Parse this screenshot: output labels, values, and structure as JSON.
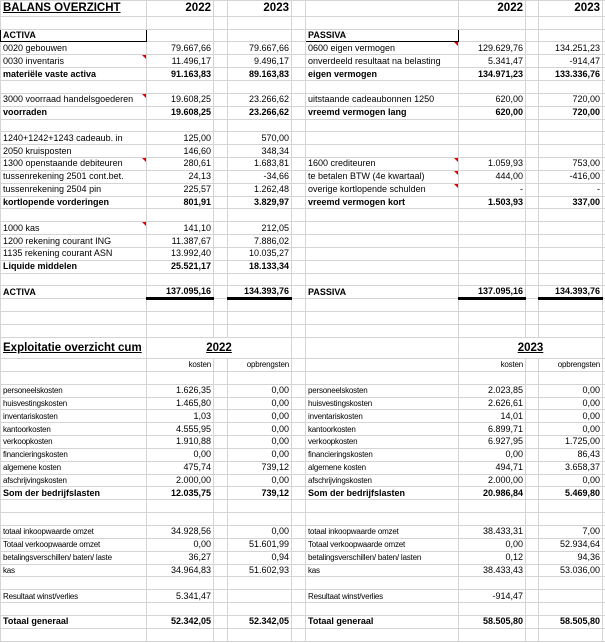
{
  "balance": {
    "title": "BALANS OVERZICHT",
    "years": [
      "2022",
      "2023"
    ],
    "activa_header": "ACTIVA",
    "passiva_header": "PASSIVA",
    "rows": [
      {
        "activa": {
          "label": "0020 gebouwen",
          "v2022": "79.667,66",
          "v2023": "79.667,66"
        },
        "passiva": {
          "label": "0600 eigen vermogen",
          "v2022": "129.629,76",
          "v2023": "134.251,23",
          "comment": true
        }
      },
      {
        "activa": {
          "label": "0030 inventaris",
          "v2022": "11.496,17",
          "v2023": "9.496,17",
          "comment": true
        },
        "passiva": {
          "label": "onverdeeld resultaat na belasting",
          "v2022": "5.341,47",
          "v2023": "-914,47"
        }
      },
      {
        "activa": {
          "label": "materiële vaste activa",
          "v2022": "91.163,83",
          "v2023": "89.163,83",
          "bold": true,
          "line": true
        },
        "passiva": {
          "label": "eigen vermogen",
          "v2022": "134.971,23",
          "v2023": "133.336,76",
          "bold": true,
          "line": true
        }
      },
      {},
      {
        "activa": {
          "label": "3000 voorraad handelsgoederen",
          "v2022": "19.608,25",
          "v2023": "23.266,62",
          "comment": true
        },
        "passiva": {
          "label": "uitstaande cadeaubonnen 1250",
          "v2022": "620,00",
          "v2023": "720,00"
        }
      },
      {
        "activa": {
          "label": "voorraden",
          "v2022": "19.608,25",
          "v2023": "23.266,62",
          "bold": true
        },
        "passiva": {
          "label": "vreemd vermogen lang",
          "v2022": "620,00",
          "v2023": "720,00",
          "bold": true,
          "line": true
        }
      },
      {},
      {
        "activa": {
          "label": "1240+1242+1243 cadeaub. in",
          "v2022": "125,00",
          "v2023": "570,00"
        }
      },
      {
        "activa": {
          "label": "2050 kruisposten",
          "v2022": "146,60",
          "v2023": "348,34"
        }
      },
      {
        "activa": {
          "label": "1300 openstaande debiteuren",
          "v2022": "280,61",
          "v2023": "1.683,81",
          "comment": true
        },
        "passiva": {
          "label": "1600 crediteuren",
          "v2022": "1.059,93",
          "v2023": "753,00",
          "comment": true
        }
      },
      {
        "activa": {
          "label": "tussenrekening 2501 cont.bet.",
          "v2022": "24,13",
          "v2023": "-34,66"
        },
        "passiva": {
          "label": "te betalen BTW (4e kwartaal)",
          "v2022": "444,00",
          "v2023": "-416,00",
          "comment": true
        }
      },
      {
        "activa": {
          "label": "tussenrekening 2504 pin",
          "v2022": "225,57",
          "v2023": "1.262,48"
        },
        "passiva": {
          "label": "overige kortlopende schulden",
          "v2022": "-",
          "v2023": "-",
          "comment": true
        }
      },
      {
        "activa": {
          "label": "kortlopende vorderingen",
          "v2022": "801,91",
          "v2023": "3.829,97",
          "bold": true,
          "line": true
        },
        "passiva": {
          "label": "vreemd vermogen kort",
          "v2022": "1.503,93",
          "v2023": "337,00",
          "bold": true,
          "line": true
        }
      },
      {},
      {
        "activa": {
          "label": "1000 kas",
          "v2022": "141,10",
          "v2023": "212,05",
          "comment": true
        }
      },
      {
        "activa": {
          "label": "1200 rekening courant ING",
          "v2022": "11.387,67",
          "v2023": "7.886,02"
        }
      },
      {
        "activa": {
          "label": "1135 rekening courant ASN",
          "v2022": "13.992,40",
          "v2023": "10.035,27"
        }
      },
      {
        "activa": {
          "label": "Liquide middelen",
          "v2022": "25.521,17",
          "v2023": "18.133,34",
          "bold": true,
          "line": true
        }
      },
      {},
      {
        "activa": {
          "label": "ACTIVA",
          "v2022": "137.095,16",
          "v2023": "134.393,76",
          "bold": true,
          "line": true,
          "total": true
        },
        "passiva": {
          "label": "PASSIVA",
          "v2022": "137.095,16",
          "v2023": "134.393,76",
          "bold": true,
          "line": true,
          "total": true
        }
      }
    ]
  },
  "exploitatie": {
    "title": "Exploitatie overzicht cum",
    "sides": [
      {
        "year": "2022",
        "kosten_label": "kosten",
        "opbrengsten_label": "opbrengsten"
      },
      {
        "year": "2023",
        "kosten_label": "kosten",
        "opbrengsten_label": "opbrengsten"
      }
    ],
    "rows": [
      {
        "left": {
          "label": "personeelskosten",
          "kosten": "1.626,35",
          "opbrengsten": "0,00"
        },
        "right": {
          "label": "personeelskosten",
          "kosten": "2.023,85",
          "opbrengsten": "0,00"
        }
      },
      {
        "left": {
          "label": "huisvestingskosten",
          "kosten": "1.465,80",
          "opbrengsten": "0,00"
        },
        "right": {
          "label": "huisvestingskosten",
          "kosten": "2.626,61",
          "opbrengsten": "0,00"
        }
      },
      {
        "left": {
          "label": "inventariskosten",
          "kosten": "1,03",
          "opbrengsten": "0,00"
        },
        "right": {
          "label": "inventariskosten",
          "kosten": "14,01",
          "opbrengsten": "0,00"
        }
      },
      {
        "left": {
          "label": "kantoorkosten",
          "kosten": "4.555,95",
          "opbrengsten": "0,00"
        },
        "right": {
          "label": "kantoorkosten",
          "kosten": "6.899,71",
          "opbrengsten": "0,00"
        }
      },
      {
        "left": {
          "label": "verkoopkosten",
          "kosten": "1.910,88",
          "opbrengsten": "0,00"
        },
        "right": {
          "label": "verkoopkosten",
          "kosten": "6.927,95",
          "opbrengsten": "1.725,00"
        }
      },
      {
        "left": {
          "label": "financieringskosten",
          "kosten": "0,00",
          "opbrengsten": "0,00"
        },
        "right": {
          "label": "financieringskosten",
          "kosten": "0,00",
          "opbrengsten": "86,43"
        }
      },
      {
        "left": {
          "label": "algemene kosten",
          "kosten": "475,74",
          "opbrengsten": "739,12"
        },
        "right": {
          "label": "algemene kosten",
          "kosten": "494,71",
          "opbrengsten": "3.658,37"
        }
      },
      {
        "left": {
          "label": "afschrijvingskosten",
          "kosten": "2.000,00",
          "opbrengsten": "0,00"
        },
        "right": {
          "label": "afschrijvingskosten",
          "kosten": "2.000,00",
          "opbrengsten": "0,00"
        }
      },
      {
        "left": {
          "label": "Som der bedrijfslasten",
          "kosten": "12.035,75",
          "opbrengsten": "739,12",
          "bold": true
        },
        "right": {
          "label": "Som der bedrijfslasten",
          "kosten": "20.986,84",
          "opbrengsten": "5.469,80",
          "bold": true
        }
      },
      {},
      {},
      {
        "left": {
          "label": "totaal inkoopwaarde omzet",
          "kosten": "34.928,56",
          "opbrengsten": "0,00"
        },
        "right": {
          "label": "totaal inkoopwaarde omzet",
          "kosten": "38.433,31",
          "opbrengsten": "7,00"
        }
      },
      {
        "left": {
          "label": "Totaal verkoopwaarde omzet",
          "kosten": "0,00",
          "opbrengsten": "51.601,99"
        },
        "right": {
          "label": "Totaal verkoopwaarde omzet",
          "kosten": "0,00",
          "opbrengsten": "52.934,64"
        }
      },
      {
        "left": {
          "label": "betalingsverschillen/ baten/ laste",
          "kosten": "36,27",
          "opbrengsten": "0,94"
        },
        "right": {
          "label": "betalingsverschillen/ baten/ lasten",
          "kosten": "0,12",
          "opbrengsten": "94,36"
        }
      },
      {
        "left": {
          "label": "kas",
          "kosten": "34.964,83",
          "opbrengsten": "51.602,93"
        },
        "right": {
          "label": "kas",
          "kosten": "38.433,43",
          "opbrengsten": "53.036,00"
        }
      },
      {},
      {
        "left": {
          "label": "Resultaat winst/verlies",
          "kosten": "5.341,47",
          "opbrengsten": ""
        },
        "right": {
          "label": "Resultaat winst/verlies",
          "kosten": "-914,47",
          "opbrengsten": ""
        }
      },
      {},
      {
        "left": {
          "label": "Totaal generaal",
          "kosten": "52.342,05",
          "opbrengsten": "52.342,05",
          "bold": true
        },
        "right": {
          "label": "Totaal generaal",
          "kosten": "58.505,80",
          "opbrengsten": "58.505,80",
          "bold": true
        }
      },
      {}
    ]
  }
}
